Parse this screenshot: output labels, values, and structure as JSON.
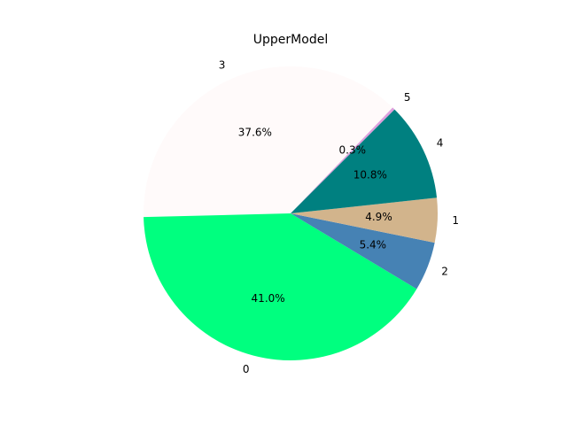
{
  "chart_data": {
    "type": "pie",
    "title": "UpperModel",
    "start_angle_deg": 45,
    "counterclock": true,
    "slices": [
      {
        "label": "5",
        "value": 0.3,
        "pct_label": "0.3%",
        "color": "#DDA0DD"
      },
      {
        "label": "3",
        "value": 37.6,
        "pct_label": "37.6%",
        "color": "#FFFAFA"
      },
      {
        "label": "0",
        "value": 41.0,
        "pct_label": "41.0%",
        "color": "#00FF7F"
      },
      {
        "label": "2",
        "value": 5.4,
        "pct_label": "5.4%",
        "color": "#4682B4"
      },
      {
        "label": "1",
        "value": 4.9,
        "pct_label": "4.9%",
        "color": "#D2B48C"
      },
      {
        "label": "4",
        "value": 10.8,
        "pct_label": "10.8%",
        "color": "#008080"
      }
    ]
  }
}
